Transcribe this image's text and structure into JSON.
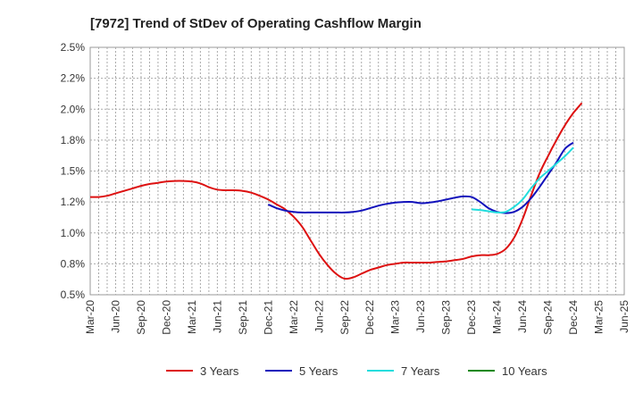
{
  "chart_data": {
    "type": "line",
    "title": "[7972]  Trend of StDev of Operating Cashflow Margin",
    "xlabel": "",
    "ylabel": "",
    "x_ticks": [
      "Mar-20",
      "Jun-20",
      "Sep-20",
      "Dec-20",
      "Mar-21",
      "Jun-21",
      "Sep-21",
      "Dec-21",
      "Mar-22",
      "Jun-22",
      "Sep-22",
      "Dec-22",
      "Mar-23",
      "Jun-23",
      "Sep-23",
      "Dec-23",
      "Mar-24",
      "Jun-24",
      "Sep-24",
      "Dec-24",
      "Mar-25",
      "Jun-25"
    ],
    "y_ticks": [
      "0.5%",
      "0.8%",
      "1.0%",
      "1.2%",
      "1.5%",
      "1.8%",
      "2.0%",
      "2.2%",
      "2.5%"
    ],
    "ylim": [
      0.5,
      2.5
    ],
    "y_unit": "%",
    "grid": true,
    "legend_position": "bottom",
    "series": [
      {
        "name": "3 Years",
        "color": "#dd1111",
        "points": [
          [
            "2020-03",
            1.29
          ],
          [
            "2020-04",
            1.29
          ],
          [
            "2020-05",
            1.3
          ],
          [
            "2020-06",
            1.32
          ],
          [
            "2020-07",
            1.34
          ],
          [
            "2020-08",
            1.36
          ],
          [
            "2020-09",
            1.38
          ],
          [
            "2020-10",
            1.395
          ],
          [
            "2020-11",
            1.405
          ],
          [
            "2020-12",
            1.415
          ],
          [
            "2021-01",
            1.42
          ],
          [
            "2021-02",
            1.42
          ],
          [
            "2021-03",
            1.415
          ],
          [
            "2021-04",
            1.4
          ],
          [
            "2021-05",
            1.37
          ],
          [
            "2021-06",
            1.35
          ],
          [
            "2021-07",
            1.345
          ],
          [
            "2021-08",
            1.345
          ],
          [
            "2021-09",
            1.34
          ],
          [
            "2021-10",
            1.325
          ],
          [
            "2021-11",
            1.3
          ],
          [
            "2021-12",
            1.27
          ],
          [
            "2022-01",
            1.23
          ],
          [
            "2022-02",
            1.19
          ],
          [
            "2022-03",
            1.13
          ],
          [
            "2022-04",
            1.05
          ],
          [
            "2022-05",
            0.94
          ],
          [
            "2022-06",
            0.83
          ],
          [
            "2022-07",
            0.74
          ],
          [
            "2022-08",
            0.67
          ],
          [
            "2022-09",
            0.63
          ],
          [
            "2022-10",
            0.64
          ],
          [
            "2022-11",
            0.67
          ],
          [
            "2022-12",
            0.7
          ],
          [
            "2023-01",
            0.72
          ],
          [
            "2023-02",
            0.74
          ],
          [
            "2023-03",
            0.75
          ],
          [
            "2023-04",
            0.76
          ],
          [
            "2023-05",
            0.76
          ],
          [
            "2023-06",
            0.76
          ],
          [
            "2023-07",
            0.76
          ],
          [
            "2023-08",
            0.765
          ],
          [
            "2023-09",
            0.77
          ],
          [
            "2023-10",
            0.78
          ],
          [
            "2023-11",
            0.79
          ],
          [
            "2023-12",
            0.81
          ],
          [
            "2024-01",
            0.82
          ],
          [
            "2024-02",
            0.82
          ],
          [
            "2024-03",
            0.83
          ],
          [
            "2024-04",
            0.87
          ],
          [
            "2024-05",
            0.96
          ],
          [
            "2024-06",
            1.11
          ],
          [
            "2024-07",
            1.3
          ],
          [
            "2024-08",
            1.48
          ],
          [
            "2024-09",
            1.62
          ],
          [
            "2024-10",
            1.75
          ],
          [
            "2024-11",
            1.87
          ],
          [
            "2024-12",
            1.97
          ],
          [
            "2025-01",
            2.05
          ]
        ]
      },
      {
        "name": "5 Years",
        "color": "#1111bb",
        "points": [
          [
            "2021-12",
            1.23
          ],
          [
            "2022-01",
            1.2
          ],
          [
            "2022-02",
            1.18
          ],
          [
            "2022-03",
            1.17
          ],
          [
            "2022-04",
            1.165
          ],
          [
            "2022-05",
            1.165
          ],
          [
            "2022-06",
            1.165
          ],
          [
            "2022-07",
            1.165
          ],
          [
            "2022-08",
            1.165
          ],
          [
            "2022-09",
            1.165
          ],
          [
            "2022-10",
            1.17
          ],
          [
            "2022-11",
            1.18
          ],
          [
            "2022-12",
            1.2
          ],
          [
            "2023-01",
            1.22
          ],
          [
            "2023-02",
            1.235
          ],
          [
            "2023-03",
            1.245
          ],
          [
            "2023-04",
            1.25
          ],
          [
            "2023-05",
            1.25
          ],
          [
            "2023-06",
            1.24
          ],
          [
            "2023-07",
            1.245
          ],
          [
            "2023-08",
            1.255
          ],
          [
            "2023-09",
            1.27
          ],
          [
            "2023-10",
            1.285
          ],
          [
            "2023-11",
            1.295
          ],
          [
            "2023-12",
            1.29
          ],
          [
            "2024-01",
            1.25
          ],
          [
            "2024-02",
            1.2
          ],
          [
            "2024-03",
            1.17
          ],
          [
            "2024-04",
            1.16
          ],
          [
            "2024-05",
            1.17
          ],
          [
            "2024-06",
            1.21
          ],
          [
            "2024-07",
            1.28
          ],
          [
            "2024-08",
            1.37
          ],
          [
            "2024-09",
            1.47
          ],
          [
            "2024-10",
            1.57
          ],
          [
            "2024-11",
            1.68
          ],
          [
            "2024-12",
            1.73
          ]
        ]
      },
      {
        "name": "7 Years",
        "color": "#22dddd",
        "points": [
          [
            "2023-12",
            1.19
          ],
          [
            "2024-01",
            1.185
          ],
          [
            "2024-02",
            1.175
          ],
          [
            "2024-03",
            1.165
          ],
          [
            "2024-04",
            1.17
          ],
          [
            "2024-05",
            1.21
          ],
          [
            "2024-06",
            1.27
          ],
          [
            "2024-07",
            1.36
          ],
          [
            "2024-08",
            1.44
          ],
          [
            "2024-09",
            1.5
          ],
          [
            "2024-10",
            1.56
          ],
          [
            "2024-11",
            1.62
          ],
          [
            "2024-12",
            1.69
          ]
        ]
      },
      {
        "name": "10 Years",
        "color": "#118811",
        "points": []
      }
    ]
  }
}
